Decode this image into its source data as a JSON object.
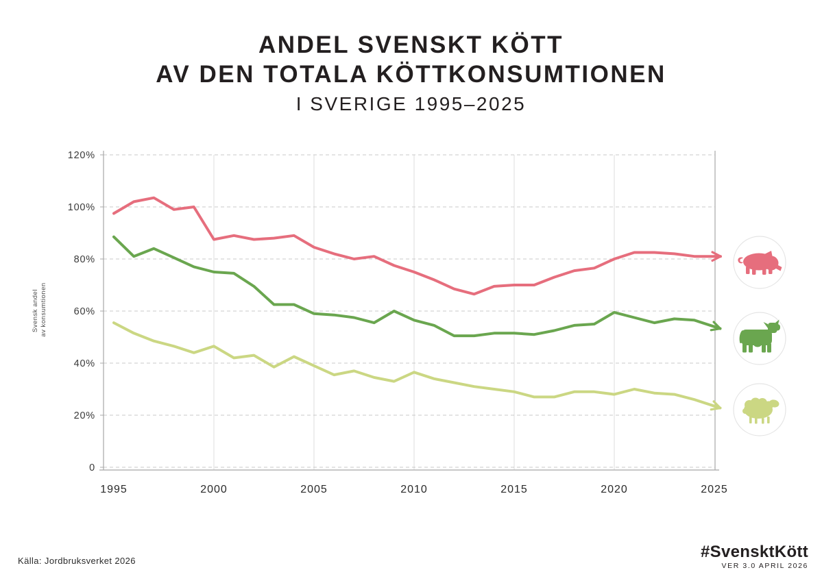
{
  "title": {
    "line1": "ANDEL SVENSKT KÖTT",
    "line2": "AV DEN TOTALA KÖTTKONSUMTIONEN",
    "line3": "I SVERIGE 1995–2025"
  },
  "footer": {
    "source": "Källa: Jordbruksverket 2026",
    "hashtag": "#SvensktKött",
    "version": "VER 3.0 APRIL 2026"
  },
  "chart_data": {
    "type": "line",
    "title": "Andel svenskt kött av den totala köttkonsumtionen i Sverige 1995–2025",
    "ylabel": "Svensk andel av konsumtionen",
    "ylabel_lines": [
      "Svensk andel",
      "av konsumtionen"
    ],
    "ylim": [
      0,
      120
    ],
    "grid": true,
    "legend_position": "right",
    "x_ticks": [
      1995,
      2000,
      2005,
      2010,
      2015,
      2020,
      2025
    ],
    "y_ticks": [
      {
        "value": 120,
        "label": "120%"
      },
      {
        "value": 100,
        "label": "100%"
      },
      {
        "value": 80,
        "label": "80%"
      },
      {
        "value": 60,
        "label": "60%"
      },
      {
        "value": 40,
        "label": "40%"
      },
      {
        "value": 20,
        "label": "20%"
      },
      {
        "value": 0,
        "label": "0"
      }
    ],
    "x": [
      1995,
      1996,
      1997,
      1998,
      1999,
      2000,
      2001,
      2002,
      2003,
      2004,
      2005,
      2006,
      2007,
      2008,
      2009,
      2010,
      2011,
      2012,
      2013,
      2014,
      2015,
      2016,
      2017,
      2018,
      2019,
      2020,
      2021,
      2022,
      2023,
      2024,
      2025
    ],
    "series": [
      {
        "name": "pork",
        "icon": "pig-icon",
        "color": "#e66e7d",
        "values": [
          97.5,
          102,
          103.5,
          99,
          100,
          87.5,
          89,
          87.5,
          88,
          89,
          84.5,
          82,
          80,
          81,
          77.5,
          75,
          72,
          68.5,
          66.5,
          69.5,
          70,
          70,
          73,
          75.5,
          76.5,
          80,
          82.5,
          82.5,
          82,
          81,
          81
        ]
      },
      {
        "name": "beef",
        "icon": "cow-icon",
        "color": "#6aa64f",
        "values": [
          88.5,
          81,
          84,
          80.5,
          77,
          75,
          74.5,
          69.5,
          62.5,
          62.5,
          59,
          58.5,
          57.5,
          55.5,
          60,
          56.5,
          54.5,
          50.5,
          50.5,
          51.5,
          51.5,
          51,
          52.5,
          54.5,
          55,
          59.5,
          57.5,
          55.5,
          57,
          56.5,
          54
        ]
      },
      {
        "name": "lamb",
        "icon": "sheep-icon",
        "color": "#cbd783",
        "values": [
          55.5,
          51.5,
          48.5,
          46.5,
          44,
          46.5,
          42,
          43,
          38.5,
          42.5,
          39,
          35.5,
          37,
          34.5,
          33,
          36.5,
          34,
          32.5,
          31,
          30,
          29,
          27,
          27,
          29,
          29,
          28,
          30,
          28.5,
          28,
          26,
          23.5
        ]
      }
    ]
  }
}
